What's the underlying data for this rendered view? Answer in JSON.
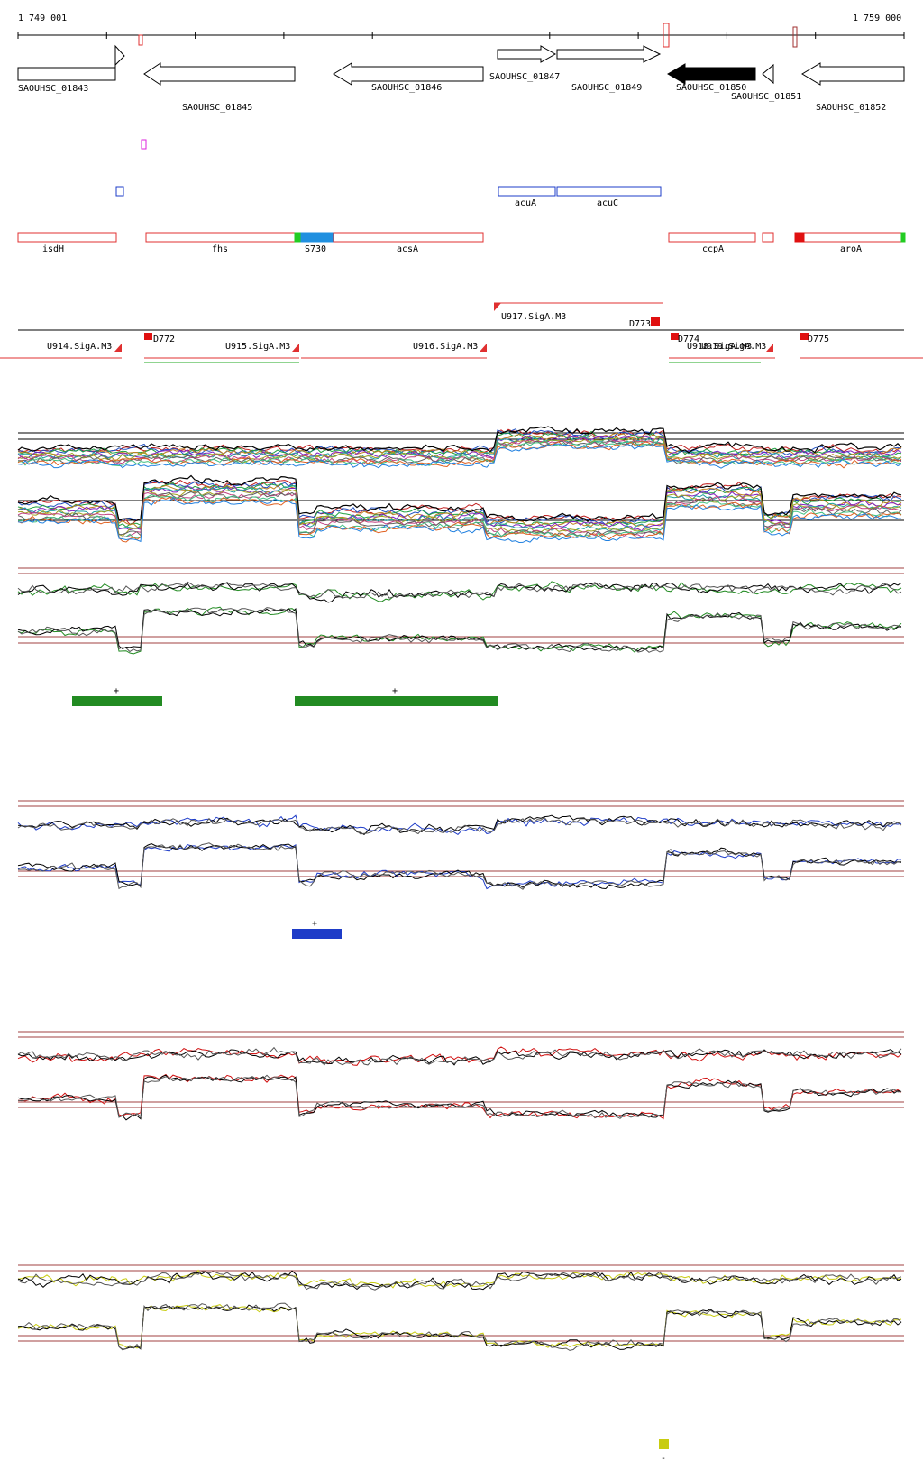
{
  "ruler": {
    "start_label": "1 749 001",
    "end_label": "1 759 000"
  },
  "genes": [
    {
      "id": "g1843",
      "label": "SAOUHSC_01843"
    },
    {
      "id": "g1845",
      "label": "SAOUHSC_01845"
    },
    {
      "id": "g1846",
      "label": "SAOUHSC_01846"
    },
    {
      "id": "g1847",
      "label": "SAOUHSC_01847"
    },
    {
      "id": "g1849",
      "label": "SAOUHSC_01849"
    },
    {
      "id": "g1850",
      "label": "SAOUHSC_01850"
    },
    {
      "id": "g1851",
      "label": "SAOUHSC_01851"
    },
    {
      "id": "g1852",
      "label": "SAOUHSC_01852"
    }
  ],
  "blue_features": [
    {
      "id": "acuA",
      "label": "acuA"
    },
    {
      "id": "acuC",
      "label": "acuC"
    }
  ],
  "red_features": [
    {
      "id": "isdH",
      "label": "isdH"
    },
    {
      "id": "fhs",
      "label": "fhs"
    },
    {
      "id": "S730",
      "label": "S730"
    },
    {
      "id": "acsA",
      "label": "acsA"
    },
    {
      "id": "ccpA",
      "label": "ccpA"
    },
    {
      "id": "aroA",
      "label": "aroA"
    }
  ],
  "transcription_units": [
    {
      "id": "U914",
      "label": "U914.SigA.M3"
    },
    {
      "id": "U915",
      "label": "U915.SigA.M3"
    },
    {
      "id": "U916",
      "label": "U916.SigA.M3"
    },
    {
      "id": "U917",
      "label": "U917.SigA.M3"
    },
    {
      "id": "U918",
      "label": "U918.SigA.M3"
    },
    {
      "id": "U919",
      "label": "U919.SigA.M3"
    }
  ],
  "downshifts": [
    {
      "id": "D772",
      "label": "D772"
    },
    {
      "id": "D773",
      "label": "D773"
    },
    {
      "id": "D774",
      "label": "D774"
    },
    {
      "id": "D775",
      "label": "D775"
    }
  ],
  "expression_panels": [
    {
      "id": "green",
      "color": "#228b22",
      "segment_labels": [
        "+",
        "+"
      ]
    },
    {
      "id": "blue",
      "color": "#1e3cc8",
      "segment_labels": [
        "+"
      ]
    },
    {
      "id": "red",
      "color": "#d01010",
      "segment_labels": []
    },
    {
      "id": "yellow",
      "color": "#c8cc10",
      "segment_labels": [
        "-"
      ]
    }
  ],
  "colors": {
    "feature_red": "#e03030",
    "feature_blue": "#1e3cc8",
    "rrna_green": "#22cc22",
    "s730_blue": "#2090e0",
    "baseline_red": "#a04040"
  }
}
